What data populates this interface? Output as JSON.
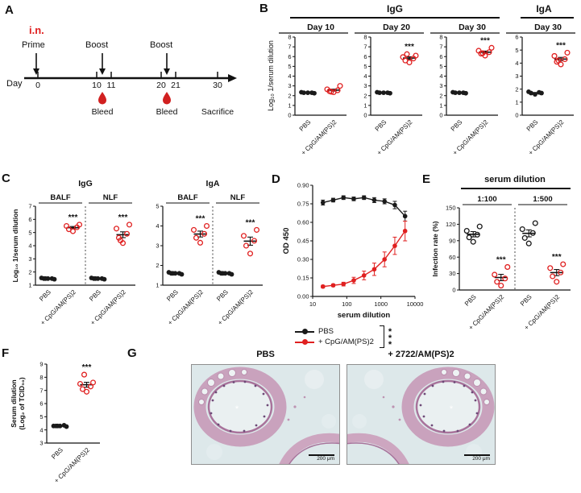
{
  "colors": {
    "black": "#1a1a1a",
    "red": "#e02020"
  },
  "panelA": {
    "letter": "A",
    "route": "i.n.",
    "prime": "Prime",
    "boost1": "Boost",
    "boost2": "Boost",
    "day": "Day",
    "ticks": [
      "0",
      "10",
      "11",
      "20",
      "21",
      "30"
    ],
    "bleed1": "Bleed",
    "bleed2": "Bleed",
    "sacrifice": "Sacrifice"
  },
  "panelB": {
    "letter": "B",
    "header_igg": "IgG",
    "header_iga": "IgA",
    "ylabel": "Log₁₀ 1/serum dilution"
  },
  "panelC": {
    "letter": "C"
  },
  "panelD": {
    "letter": "D",
    "legend": [
      "PBS",
      "+ CpG/AM(PS)2"
    ],
    "sig_stack": "*\n*\n*"
  },
  "panelE": {
    "letter": "E",
    "title": "serum dilution"
  },
  "panelF": {
    "letter": "F"
  },
  "panelG": {
    "letter": "G",
    "title_left": "PBS",
    "title_right": "+ 2722/AM(PS)2",
    "scalebar": "200 μm"
  },
  "chart_data": [
    {
      "id": "b1",
      "type": "dots",
      "title": "Day 10",
      "title_line": true,
      "ylim": [
        0,
        8
      ],
      "yticks": [
        0,
        1,
        2,
        3,
        4,
        5,
        6,
        7,
        8
      ],
      "groups": [
        {
          "label": "PBS",
          "color": "black",
          "values": [
            2.3,
            2.3,
            2.3,
            2.35,
            2.25
          ]
        },
        {
          "label": "+ CpG/AM(PS)2",
          "color": "red",
          "open": true,
          "values": [
            2.35,
            2.45,
            2.55,
            2.65,
            3.0,
            2.4
          ],
          "sig": ""
        }
      ]
    },
    {
      "id": "b2",
      "type": "dots",
      "title": "Day 20",
      "title_line": true,
      "ylim": [
        0,
        8
      ],
      "yticks": [
        0,
        1,
        2,
        3,
        4,
        5,
        6,
        7,
        8
      ],
      "groups": [
        {
          "label": "PBS",
          "color": "black",
          "values": [
            2.3,
            2.3,
            2.3,
            2.35,
            2.25
          ]
        },
        {
          "label": "+ CpG/AM(PS)2",
          "color": "red",
          "open": true,
          "values": [
            5.4,
            5.6,
            5.8,
            5.95,
            6.1,
            6.25
          ],
          "sig": "***"
        }
      ]
    },
    {
      "id": "b3",
      "type": "dots",
      "title": "Day 30",
      "title_line": true,
      "ylim": [
        0,
        8
      ],
      "yticks": [
        0,
        1,
        2,
        3,
        4,
        5,
        6,
        7,
        8
      ],
      "groups": [
        {
          "label": "PBS",
          "color": "black",
          "values": [
            2.3,
            2.3,
            2.3,
            2.35,
            2.25
          ]
        },
        {
          "label": "+ CpG/AM(PS)2",
          "color": "red",
          "open": true,
          "values": [
            6.1,
            6.3,
            6.45,
            6.6,
            6.9,
            6.35
          ],
          "sig": "***"
        }
      ]
    },
    {
      "id": "b4",
      "type": "dots",
      "title": "Day 30",
      "title_line": true,
      "ylim": [
        0,
        6
      ],
      "yticks": [
        0,
        1,
        2,
        3,
        4,
        5,
        6
      ],
      "groups": [
        {
          "label": "PBS",
          "color": "black",
          "values": [
            1.6,
            1.7,
            1.75,
            1.8,
            1.7
          ]
        },
        {
          "label": "+ CpG/AM(PS)2",
          "color": "red",
          "open": true,
          "values": [
            3.9,
            4.1,
            4.3,
            4.55,
            4.8,
            4.2
          ],
          "sig": "***"
        }
      ]
    },
    {
      "id": "c_igg",
      "type": "dots",
      "title": "IgG",
      "ylabel": "Log₁₀ 1/serum dilution",
      "ylim": [
        1,
        7
      ],
      "yticks": [
        1,
        2,
        3,
        4,
        5,
        6,
        7
      ],
      "headers": [
        {
          "text": "BALF",
          "span": [
            0,
            1
          ],
          "underline": true
        },
        {
          "text": "NLF",
          "span": [
            2,
            3
          ],
          "underline": true
        }
      ],
      "dividers": [
        2
      ],
      "groups": [
        {
          "label": "PBS",
          "color": "black",
          "values": [
            1.5,
            1.5,
            1.5,
            1.55,
            1.45,
            1.5
          ]
        },
        {
          "label": "+ CpG/AM(PS)2",
          "color": "red",
          "open": true,
          "values": [
            5.1,
            5.25,
            5.4,
            5.5,
            5.6
          ],
          "sig": "***"
        },
        {
          "label": "PBS",
          "color": "black",
          "values": [
            1.5,
            1.5,
            1.5,
            1.55,
            1.45,
            1.5
          ]
        },
        {
          "label": "+ CpG/AM(PS)2",
          "color": "red",
          "open": true,
          "values": [
            4.2,
            4.6,
            4.9,
            5.3,
            5.6,
            4.4
          ],
          "sig": "***"
        }
      ]
    },
    {
      "id": "c_iga",
      "type": "dots",
      "title": "IgA",
      "ylim": [
        1,
        5
      ],
      "yticks": [
        1,
        2,
        3,
        4,
        5
      ],
      "headers": [
        {
          "text": "BALF",
          "span": [
            0,
            1
          ],
          "underline": true
        },
        {
          "text": "NLF",
          "span": [
            2,
            3
          ],
          "underline": true
        }
      ],
      "dividers": [
        2
      ],
      "groups": [
        {
          "label": "PBS",
          "color": "black",
          "values": [
            1.6,
            1.6,
            1.6,
            1.65,
            1.55,
            1.6
          ]
        },
        {
          "label": "+ CpG/AM(PS)2",
          "color": "red",
          "open": true,
          "values": [
            3.15,
            3.4,
            3.6,
            3.8,
            4.0
          ],
          "sig": "***"
        },
        {
          "label": "PBS",
          "color": "black",
          "values": [
            1.6,
            1.6,
            1.6,
            1.65,
            1.55,
            1.6
          ]
        },
        {
          "label": "+ CpG/AM(PS)2",
          "color": "red",
          "open": true,
          "values": [
            2.6,
            3.0,
            3.25,
            3.5,
            3.8
          ],
          "sig": "***"
        }
      ]
    },
    {
      "id": "d",
      "type": "line",
      "xlabel": "serum dilution",
      "ylabel": "OD 450",
      "ylim": [
        0,
        0.9
      ],
      "yticks": [
        0,
        0.15,
        0.3,
        0.45,
        0.6,
        0.75,
        0.9
      ],
      "xlim": [
        10,
        10000
      ],
      "xticks": [
        10,
        100,
        1000,
        10000
      ],
      "series": [
        {
          "name": "PBS",
          "color": "black",
          "x": [
            20,
            40,
            80,
            160,
            320,
            640,
            1280,
            2560,
            5120
          ],
          "y": [
            0.76,
            0.78,
            0.8,
            0.79,
            0.8,
            0.78,
            0.77,
            0.74,
            0.65
          ],
          "err": [
            0.02,
            0.015,
            0.015,
            0.015,
            0.015,
            0.02,
            0.02,
            0.03,
            0.04
          ]
        },
        {
          "name": "+ CpG/AM(PS)2",
          "color": "red",
          "x": [
            20,
            40,
            80,
            160,
            320,
            640,
            1280,
            2560,
            5120
          ],
          "y": [
            0.08,
            0.09,
            0.1,
            0.13,
            0.17,
            0.22,
            0.3,
            0.41,
            0.53
          ],
          "err": [
            0.01,
            0.01,
            0.015,
            0.025,
            0.035,
            0.05,
            0.06,
            0.07,
            0.08
          ]
        }
      ]
    },
    {
      "id": "e",
      "type": "dots",
      "ylabel": "Infection rate (%)",
      "ylim": [
        0,
        150
      ],
      "yticks": [
        0,
        30,
        60,
        90,
        120,
        150
      ],
      "headers": [
        {
          "text": "1:100",
          "span": [
            0,
            1
          ],
          "underline": true
        },
        {
          "text": "1:500",
          "span": [
            2,
            3
          ],
          "underline": true
        }
      ],
      "dividers": [
        2
      ],
      "groups": [
        {
          "label": "PBS",
          "color": "black",
          "open": true,
          "values": [
            88,
            96,
            101,
            108,
            116
          ]
        },
        {
          "label": "+ CpG/AM(PS)2",
          "color": "red",
          "open": true,
          "values": [
            8,
            15,
            21,
            28,
            42
          ],
          "sig": "***"
        },
        {
          "label": "PBS",
          "color": "black",
          "open": true,
          "values": [
            85,
            95,
            104,
            111,
            122
          ]
        },
        {
          "label": "+ CpG/AM(PS)2",
          "color": "red",
          "open": true,
          "values": [
            15,
            25,
            32,
            40,
            47
          ],
          "sig": "***"
        }
      ]
    },
    {
      "id": "f",
      "type": "dots",
      "ylabel": "Serum dilution\n(Log₂ of TCID₅₀)",
      "ylim": [
        3,
        9
      ],
      "yticks": [
        3,
        4,
        5,
        6,
        7,
        8,
        9
      ],
      "groups": [
        {
          "label": "PBS",
          "color": "black",
          "values": [
            4.3,
            4.3,
            4.35,
            4.3,
            4.25,
            4.3
          ]
        },
        {
          "label": "+ CpG/AM(PS)2",
          "color": "red",
          "open": true,
          "values": [
            6.9,
            7.1,
            7.3,
            7.5,
            7.6,
            8.2
          ],
          "sig": "***"
        }
      ]
    }
  ]
}
